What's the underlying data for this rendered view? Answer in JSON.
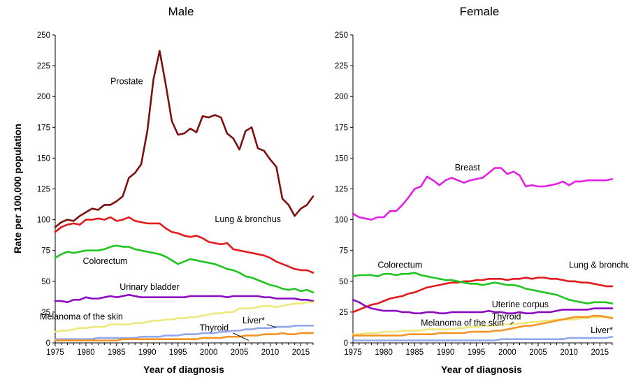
{
  "figure": {
    "ylabel": "Rate per 100,000 population",
    "xlabel": "Year of diagnosis"
  },
  "chart_data": [
    {
      "type": "line",
      "title": "Male",
      "xlabel": "Year of diagnosis",
      "ylabel": "Rate per 100,000 population",
      "xlim": [
        1975,
        2017
      ],
      "ylim": [
        0,
        250
      ],
      "xticks": [
        1975,
        1980,
        1985,
        1990,
        1995,
        2000,
        2005,
        2010,
        2015
      ],
      "yticks": [
        0,
        25,
        50,
        75,
        100,
        125,
        150,
        175,
        200,
        225,
        250
      ],
      "grid": false,
      "legend": "none (inline labels)",
      "x": [
        1975,
        1976,
        1977,
        1978,
        1979,
        1980,
        1981,
        1982,
        1983,
        1984,
        1985,
        1986,
        1987,
        1988,
        1989,
        1990,
        1991,
        1992,
        1993,
        1994,
        1995,
        1996,
        1997,
        1998,
        1999,
        2000,
        2001,
        2002,
        2003,
        2004,
        2005,
        2006,
        2007,
        2008,
        2009,
        2010,
        2011,
        2012,
        2013,
        2014,
        2015,
        2016,
        2017
      ],
      "series": [
        {
          "name": "Prostate",
          "color": "#7f0f0f",
          "label_year": 1984,
          "label_value": 210,
          "values": [
            94,
            98,
            100,
            99,
            103,
            106,
            109,
            108,
            112,
            112,
            115,
            119,
            134,
            138,
            145,
            172,
            214,
            237,
            210,
            180,
            169,
            170,
            174,
            171,
            184,
            183,
            185,
            183,
            170,
            166,
            157,
            172,
            175,
            158,
            156,
            149,
            143,
            117,
            112,
            103,
            109,
            112,
            119
          ]
        },
        {
          "name": "Lung & bronchus",
          "color": "#e3191c",
          "label_year": 2001,
          "label_value": 98,
          "values": [
            90,
            94,
            96,
            97,
            96,
            100,
            100,
            101,
            100,
            102,
            99,
            100,
            102,
            99,
            98,
            97,
            97,
            97,
            93,
            90,
            89,
            87,
            86,
            87,
            85,
            82,
            81,
            80,
            81,
            76,
            75,
            74,
            73,
            72,
            71,
            69,
            66,
            64,
            62,
            60,
            59,
            59,
            57
          ]
        },
        {
          "name": "Colorectum",
          "color": "#1fc41f",
          "label_year": 1979.5,
          "label_value": 64,
          "values": [
            69,
            72,
            74,
            73,
            74,
            75,
            75,
            75,
            76,
            78,
            79,
            78,
            78,
            76,
            75,
            74,
            73,
            72,
            70,
            67,
            64,
            66,
            68,
            67,
            66,
            65,
            64,
            62,
            60,
            59,
            57,
            54,
            53,
            51,
            49,
            47,
            46,
            44,
            43,
            44,
            42,
            43,
            41
          ]
        },
        {
          "name": "Urinary bladder",
          "color": "#8b0ac2",
          "label_year": 1985.5,
          "label_value": 43,
          "values": [
            34,
            34,
            33,
            35,
            35,
            37,
            36,
            36,
            37,
            38,
            37,
            38,
            39,
            38,
            37,
            37,
            37,
            37,
            37,
            37,
            37,
            37,
            38,
            38,
            38,
            38,
            38,
            38,
            37,
            38,
            38,
            38,
            38,
            38,
            37,
            37,
            36,
            36,
            36,
            36,
            35,
            35,
            34
          ]
        },
        {
          "name": "Melanoma of the skin",
          "color": "#eee87a",
          "label_year": 1972.5,
          "label_value": 19,
          "values": [
            9,
            10,
            10,
            11,
            12,
            12,
            13,
            13,
            13,
            15,
            15,
            15,
            15,
            16,
            16,
            17,
            18,
            18,
            19,
            19,
            20,
            20,
            21,
            21,
            22,
            23,
            24,
            24,
            25,
            25,
            28,
            28,
            28,
            29,
            30,
            30,
            29,
            30,
            31,
            32,
            32,
            33,
            33
          ]
        },
        {
          "name": "Liver*",
          "color": "#93a7ee",
          "label_year": 2005.5,
          "label_value": 16,
          "values": [
            3,
            3,
            3,
            3,
            3,
            3,
            3,
            4,
            4,
            4,
            4,
            4,
            4,
            4,
            5,
            5,
            5,
            5,
            6,
            6,
            6,
            7,
            7,
            7,
            8,
            8,
            8,
            9,
            9,
            10,
            10,
            11,
            11,
            12,
            12,
            12,
            13,
            13,
            13,
            14,
            14,
            14,
            14
          ]
        },
        {
          "name": "Thyroid",
          "color": "#f39423",
          "label_year": 1998.5,
          "label_value": 10,
          "values": [
            2,
            2,
            2,
            2,
            2,
            2,
            2,
            2,
            2,
            2,
            2,
            3,
            3,
            3,
            3,
            3,
            3,
            3,
            3,
            3,
            3,
            3,
            3,
            3,
            4,
            4,
            4,
            4,
            5,
            5,
            5,
            6,
            6,
            6,
            7,
            7,
            7,
            8,
            7,
            7,
            8,
            8,
            8
          ]
        }
      ]
    },
    {
      "type": "line",
      "title": "Female",
      "xlabel": "Year of diagnosis",
      "ylabel": "",
      "xlim": [
        1975,
        2017
      ],
      "ylim": [
        0,
        250
      ],
      "xticks": [
        1975,
        1980,
        1985,
        1990,
        1995,
        2000,
        2005,
        2010,
        2015
      ],
      "yticks": [
        0,
        25,
        50,
        75,
        100,
        125,
        150,
        175,
        200,
        225,
        250
      ],
      "grid": false,
      "legend": "none (inline labels)",
      "x": [
        1975,
        1976,
        1977,
        1978,
        1979,
        1980,
        1981,
        1982,
        1983,
        1984,
        1985,
        1986,
        1987,
        1988,
        1989,
        1990,
        1991,
        1992,
        1993,
        1994,
        1995,
        1996,
        1997,
        1998,
        1999,
        2000,
        2001,
        2002,
        2003,
        2004,
        2005,
        2006,
        2007,
        2008,
        2009,
        2010,
        2011,
        2012,
        2013,
        2014,
        2015,
        2016,
        2017
      ],
      "series": [
        {
          "name": "Breast",
          "color": "#e61ee6",
          "label_year": 1991.5,
          "label_value": 140,
          "values": [
            105,
            102,
            101,
            100,
            102,
            102,
            107,
            107,
            112,
            118,
            125,
            127,
            135,
            132,
            128,
            132,
            134,
            132,
            130,
            132,
            133,
            134,
            138,
            142,
            142,
            137,
            139,
            136,
            127,
            128,
            127,
            127,
            128,
            129,
            131,
            128,
            131,
            131,
            132,
            132,
            132,
            132,
            133
          ]
        },
        {
          "name": "Lung & bronchus",
          "color": "#e3191c",
          "label_year": 2010,
          "label_value": 61,
          "values": [
            25,
            27,
            29,
            31,
            32,
            34,
            36,
            37,
            38,
            40,
            41,
            43,
            45,
            46,
            47,
            48,
            49,
            49,
            50,
            50,
            51,
            51,
            52,
            52,
            52,
            51,
            52,
            52,
            53,
            52,
            53,
            53,
            52,
            52,
            51,
            50,
            50,
            49,
            49,
            48,
            47,
            46,
            46
          ]
        },
        {
          "name": "Colorectum",
          "color": "#1fc41f",
          "label_year": 1979,
          "label_value": 61,
          "values": [
            54,
            55,
            55,
            55,
            54,
            56,
            56,
            55,
            56,
            56,
            57,
            55,
            54,
            53,
            52,
            51,
            51,
            50,
            49,
            48,
            48,
            47,
            48,
            49,
            48,
            47,
            47,
            46,
            44,
            43,
            42,
            41,
            40,
            39,
            37,
            35,
            34,
            33,
            32,
            33,
            33,
            33,
            32
          ]
        },
        {
          "name": "Uterine corpus",
          "color": "#8b0ac2",
          "label_year": 1997.5,
          "label_value": 29,
          "values": [
            35,
            33,
            30,
            28,
            27,
            26,
            26,
            26,
            25,
            25,
            24,
            24,
            25,
            25,
            24,
            24,
            25,
            25,
            25,
            25,
            25,
            25,
            26,
            25,
            25,
            24,
            24,
            25,
            24,
            24,
            25,
            25,
            25,
            26,
            27,
            27,
            27,
            27,
            27,
            28,
            28,
            28,
            28
          ]
        },
        {
          "name": "Melanoma of the skin",
          "color": "#eee87a",
          "label_year": 1986,
          "label_value": 14,
          "values": [
            7,
            7,
            8,
            8,
            8,
            9,
            9,
            9,
            10,
            10,
            10,
            10,
            11,
            11,
            11,
            11,
            11,
            12,
            12,
            13,
            13,
            14,
            14,
            14,
            15,
            15,
            15,
            16,
            16,
            17,
            17,
            18,
            18,
            19,
            19,
            19,
            19,
            20,
            20,
            21,
            21,
            21,
            21
          ]
        },
        {
          "name": "Thyroid",
          "color": "#f39423",
          "label_year": 1997.5,
          "label_value": 19,
          "values": [
            6,
            6,
            6,
            6,
            6,
            6,
            6,
            6,
            6,
            7,
            7,
            7,
            7,
            7,
            8,
            8,
            8,
            8,
            8,
            9,
            9,
            9,
            9,
            10,
            10,
            11,
            12,
            13,
            14,
            14,
            15,
            16,
            17,
            18,
            19,
            20,
            21,
            21,
            21,
            22,
            22,
            21,
            20
          ]
        },
        {
          "name": "Liver*",
          "color": "#93a7ee",
          "label_year": 2013.5,
          "label_value": 8,
          "values": [
            2,
            2,
            2,
            2,
            2,
            2,
            2,
            2,
            2,
            2,
            2,
            2,
            2,
            2,
            2,
            2,
            2,
            2,
            2,
            2,
            2,
            2,
            2,
            2,
            3,
            3,
            3,
            3,
            3,
            3,
            3,
            3,
            3,
            3,
            3,
            4,
            4,
            4,
            4,
            4,
            4,
            4,
            5
          ]
        }
      ]
    }
  ]
}
